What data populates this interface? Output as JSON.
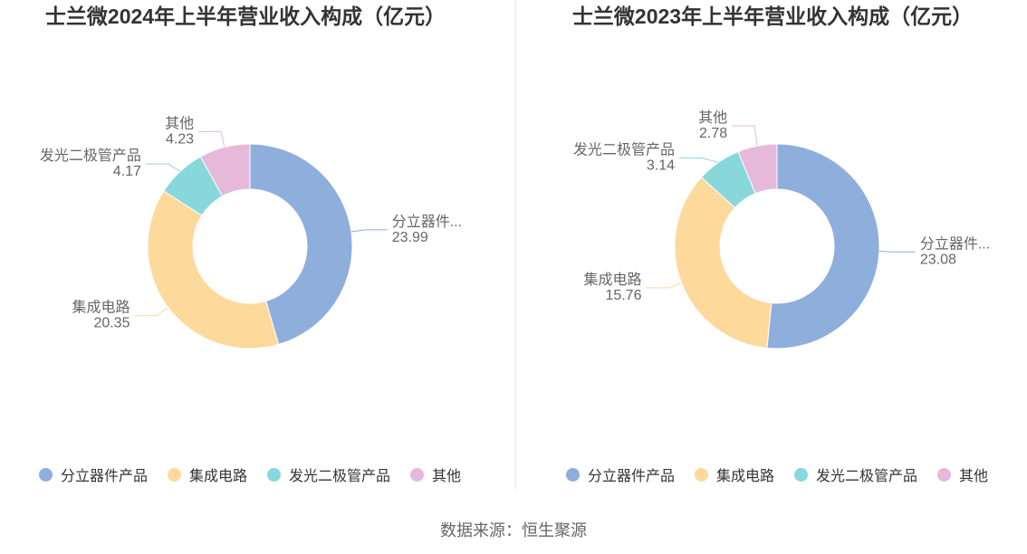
{
  "chart_data": [
    {
      "type": "pie",
      "donut": true,
      "title": "士兰微2024年上半年营业收入构成（亿元）",
      "categories": [
        "分立器件产品",
        "集成电路",
        "发光二极管产品",
        "其他"
      ],
      "values": [
        23.99,
        20.35,
        4.17,
        4.23
      ],
      "slice_labels": [
        "分立器件...",
        "集成电路",
        "发光二极管产品",
        "其他"
      ],
      "colors": [
        "#8eaedc",
        "#fed99c",
        "#88d7db",
        "#e6b9db"
      ],
      "legend": "bottom"
    },
    {
      "type": "pie",
      "donut": true,
      "title": "士兰微2023年上半年营业收入构成（亿元）",
      "categories": [
        "分立器件产品",
        "集成电路",
        "发光二极管产品",
        "其他"
      ],
      "values": [
        23.08,
        15.76,
        3.14,
        2.78
      ],
      "slice_labels": [
        "分立器件...",
        "集成电路",
        "发光二极管产品",
        "其他"
      ],
      "colors": [
        "#8eaedc",
        "#fed99c",
        "#88d7db",
        "#e6b9db"
      ],
      "legend": "bottom"
    }
  ],
  "source": "数据来源：恒生聚源"
}
